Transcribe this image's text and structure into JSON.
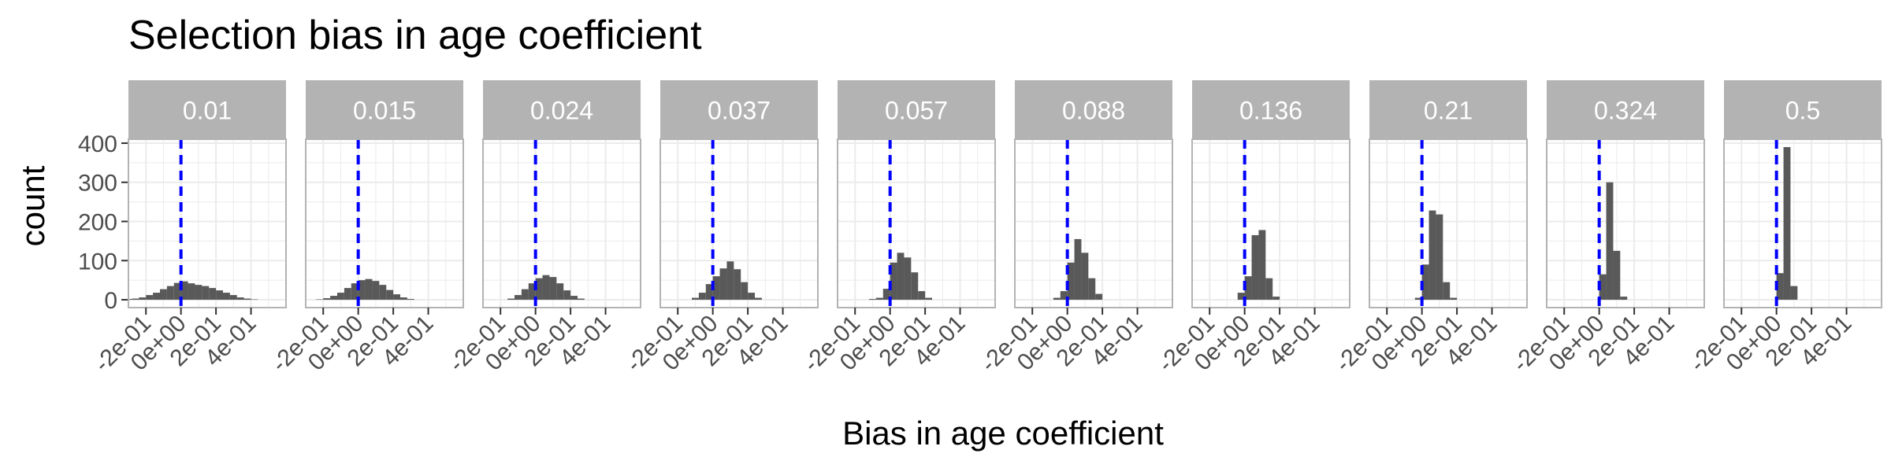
{
  "chart_data": {
    "type": "bar",
    "title": "Selection bias in age coefficient",
    "xlabel": "Bias in age coefficient",
    "ylabel": "count",
    "xlim": [
      -0.3,
      0.6
    ],
    "ylim": [
      -20,
      410
    ],
    "x_ticks": [
      -0.2,
      0.0,
      0.2,
      0.4
    ],
    "x_tick_labels": [
      "-2e-01",
      "0e+00",
      "2e-01",
      "4e-01"
    ],
    "y_ticks": [
      0,
      100,
      200,
      300,
      400
    ],
    "y_tick_labels": [
      "0",
      "100",
      "200",
      "300",
      "400"
    ],
    "grid": true,
    "bin_width": 0.04,
    "bar_color": "#595959",
    "reference_line": {
      "x": 0,
      "style": "dashed",
      "color": "#0000ff"
    },
    "strip_color": "#b3b3b3",
    "panels": [
      {
        "label": "0.01",
        "bins": [
          {
            "x": -0.34,
            "y": 1
          },
          {
            "x": -0.3,
            "y": 2
          },
          {
            "x": -0.26,
            "y": 3
          },
          {
            "x": -0.22,
            "y": 6
          },
          {
            "x": -0.18,
            "y": 12
          },
          {
            "x": -0.14,
            "y": 18
          },
          {
            "x": -0.1,
            "y": 27
          },
          {
            "x": -0.06,
            "y": 35
          },
          {
            "x": -0.02,
            "y": 43
          },
          {
            "x": 0.02,
            "y": 47
          },
          {
            "x": 0.06,
            "y": 42
          },
          {
            "x": 0.1,
            "y": 38
          },
          {
            "x": 0.14,
            "y": 35
          },
          {
            "x": 0.18,
            "y": 30
          },
          {
            "x": 0.22,
            "y": 24
          },
          {
            "x": 0.26,
            "y": 18
          },
          {
            "x": 0.3,
            "y": 12
          },
          {
            "x": 0.34,
            "y": 6
          },
          {
            "x": 0.38,
            "y": 3
          },
          {
            "x": 0.42,
            "y": 1
          }
        ]
      },
      {
        "label": "0.015",
        "bins": [
          {
            "x": -0.22,
            "y": 1
          },
          {
            "x": -0.18,
            "y": 4
          },
          {
            "x": -0.14,
            "y": 10
          },
          {
            "x": -0.1,
            "y": 18
          },
          {
            "x": -0.06,
            "y": 30
          },
          {
            "x": -0.02,
            "y": 42
          },
          {
            "x": 0.02,
            "y": 50
          },
          {
            "x": 0.06,
            "y": 53
          },
          {
            "x": 0.1,
            "y": 48
          },
          {
            "x": 0.14,
            "y": 38
          },
          {
            "x": 0.18,
            "y": 25
          },
          {
            "x": 0.22,
            "y": 14
          },
          {
            "x": 0.26,
            "y": 6
          },
          {
            "x": 0.3,
            "y": 2
          }
        ]
      },
      {
        "label": "0.024",
        "bins": [
          {
            "x": -0.14,
            "y": 3
          },
          {
            "x": -0.1,
            "y": 12
          },
          {
            "x": -0.06,
            "y": 27
          },
          {
            "x": -0.02,
            "y": 42
          },
          {
            "x": 0.02,
            "y": 55
          },
          {
            "x": 0.06,
            "y": 63
          },
          {
            "x": 0.1,
            "y": 58
          },
          {
            "x": 0.14,
            "y": 42
          },
          {
            "x": 0.18,
            "y": 24
          },
          {
            "x": 0.22,
            "y": 10
          },
          {
            "x": 0.26,
            "y": 3
          }
        ]
      },
      {
        "label": "0.037",
        "bins": [
          {
            "x": -0.1,
            "y": 5
          },
          {
            "x": -0.06,
            "y": 18
          },
          {
            "x": -0.02,
            "y": 40
          },
          {
            "x": 0.02,
            "y": 60
          },
          {
            "x": 0.06,
            "y": 80
          },
          {
            "x": 0.1,
            "y": 98
          },
          {
            "x": 0.14,
            "y": 78
          },
          {
            "x": 0.18,
            "y": 45
          },
          {
            "x": 0.22,
            "y": 18
          },
          {
            "x": 0.26,
            "y": 5
          }
        ]
      },
      {
        "label": "0.057",
        "bins": [
          {
            "x": -0.1,
            "y": 2
          },
          {
            "x": -0.06,
            "y": 5
          },
          {
            "x": -0.02,
            "y": 28
          },
          {
            "x": 0.02,
            "y": 95
          },
          {
            "x": 0.06,
            "y": 120
          },
          {
            "x": 0.1,
            "y": 108
          },
          {
            "x": 0.14,
            "y": 70
          },
          {
            "x": 0.18,
            "y": 22
          },
          {
            "x": 0.22,
            "y": 5
          }
        ]
      },
      {
        "label": "0.088",
        "bins": [
          {
            "x": -0.06,
            "y": 5
          },
          {
            "x": -0.02,
            "y": 22
          },
          {
            "x": 0.02,
            "y": 95
          },
          {
            "x": 0.06,
            "y": 155
          },
          {
            "x": 0.1,
            "y": 120
          },
          {
            "x": 0.14,
            "y": 55
          },
          {
            "x": 0.18,
            "y": 15
          }
        ]
      },
      {
        "label": "0.136",
        "bins": [
          {
            "x": -0.02,
            "y": 18
          },
          {
            "x": 0.02,
            "y": 60
          },
          {
            "x": 0.06,
            "y": 165
          },
          {
            "x": 0.1,
            "y": 178
          },
          {
            "x": 0.14,
            "y": 55
          },
          {
            "x": 0.18,
            "y": 8
          }
        ]
      },
      {
        "label": "0.21",
        "bins": [
          {
            "x": -0.02,
            "y": 5
          },
          {
            "x": 0.02,
            "y": 90
          },
          {
            "x": 0.06,
            "y": 228
          },
          {
            "x": 0.1,
            "y": 218
          },
          {
            "x": 0.14,
            "y": 45
          },
          {
            "x": 0.18,
            "y": 5
          }
        ]
      },
      {
        "label": "0.324",
        "bins": [
          {
            "x": 0.02,
            "y": 65
          },
          {
            "x": 0.06,
            "y": 300
          },
          {
            "x": 0.1,
            "y": 125
          },
          {
            "x": 0.14,
            "y": 8
          }
        ]
      },
      {
        "label": "0.5",
        "bins": [
          {
            "x": 0.02,
            "y": 68
          },
          {
            "x": 0.06,
            "y": 390
          },
          {
            "x": 0.1,
            "y": 35
          }
        ]
      }
    ]
  }
}
